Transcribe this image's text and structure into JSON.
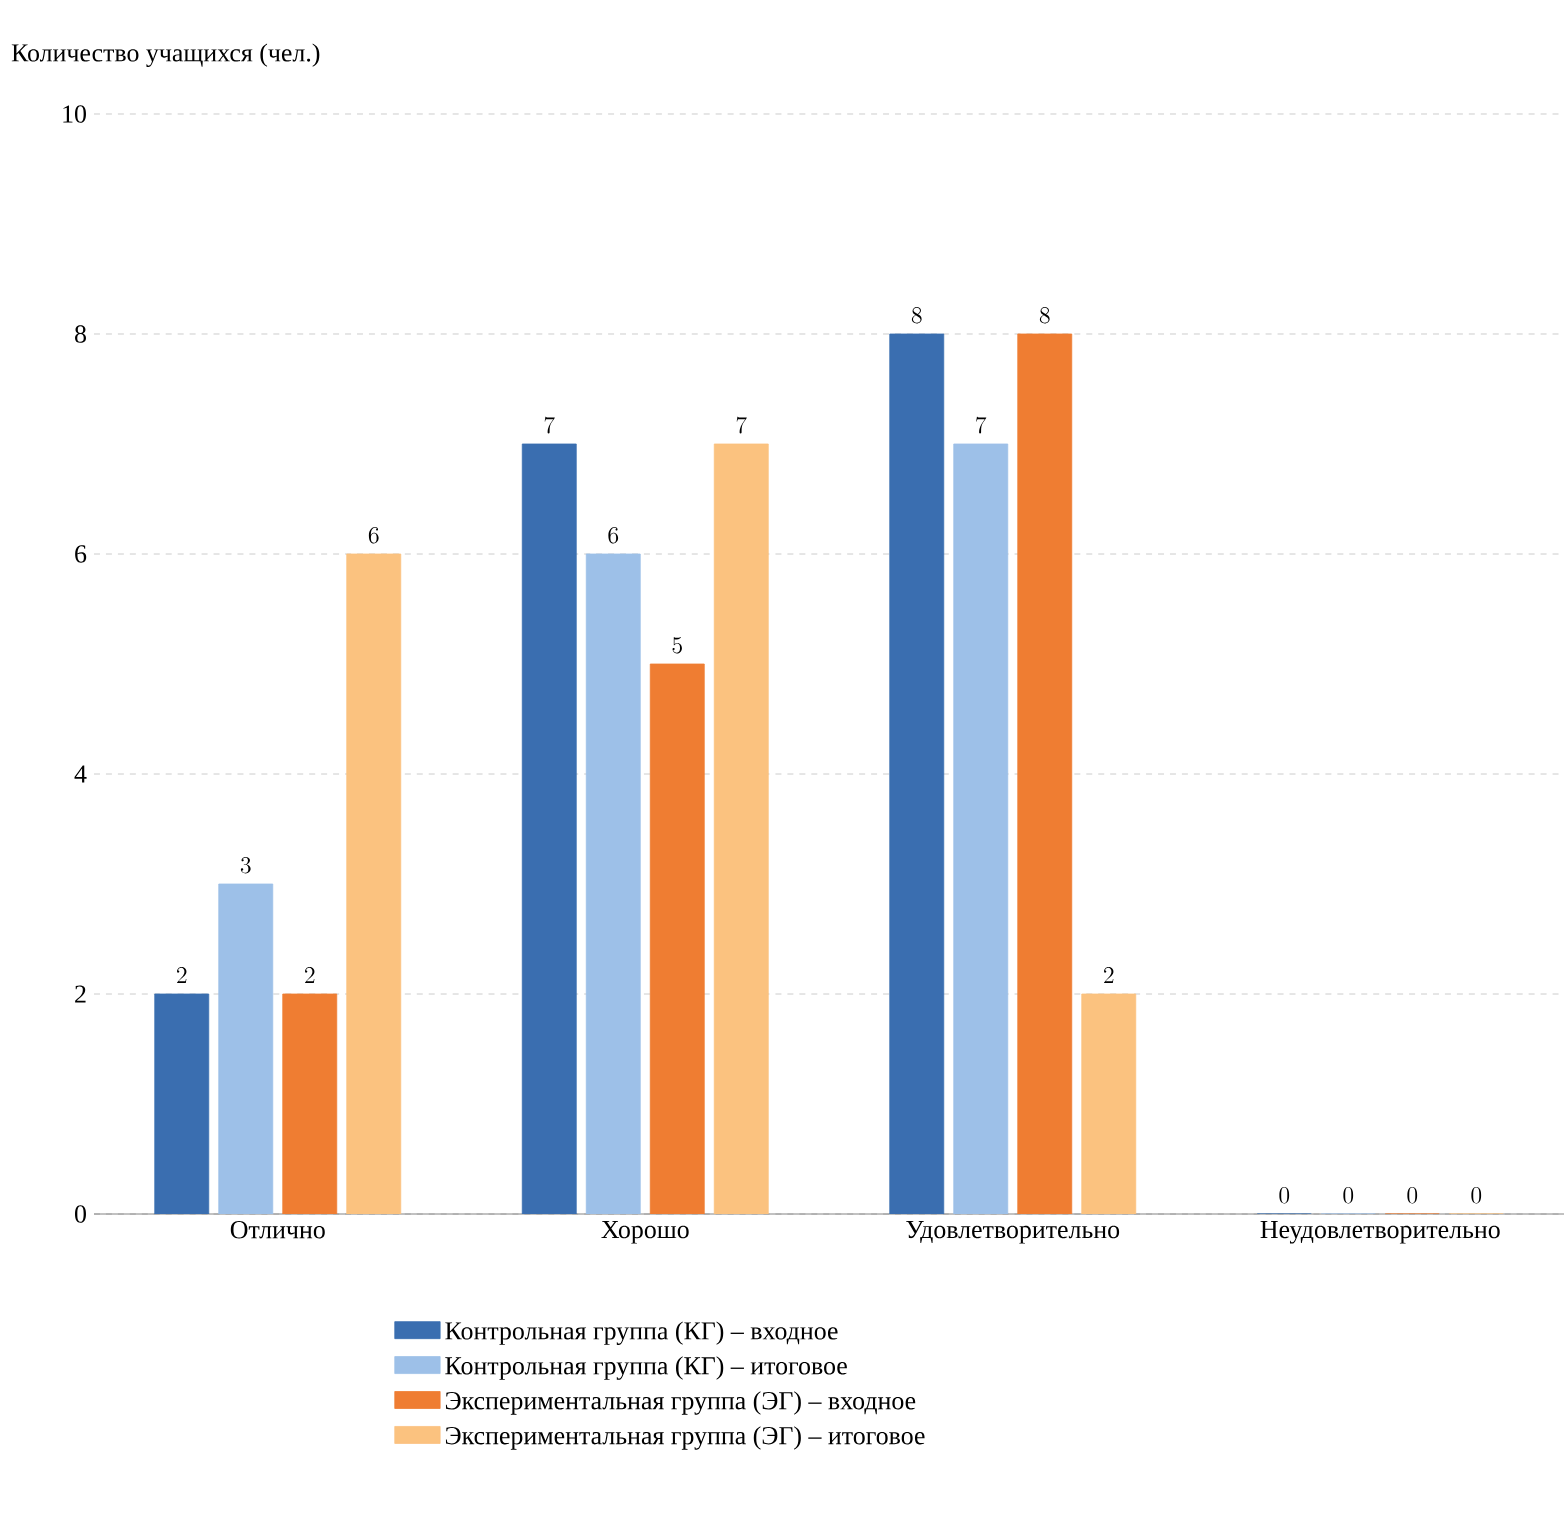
{
  "chart_data": {
    "type": "bar",
    "ylabel": "Количество учащихся (чел.)",
    "categories": [
      "Отлично",
      "Хорошо",
      "Удовлетворительно",
      "Неудовлетворительно"
    ],
    "series": [
      {
        "name": "Контрольная группа (КГ) – входное",
        "color": "#3a6eb0",
        "values": [
          2,
          7,
          8,
          0
        ]
      },
      {
        "name": "Контрольная группа (КГ) – итоговое",
        "color": "#9dc0e8",
        "values": [
          3,
          6,
          7,
          0
        ]
      },
      {
        "name": "Экспериментальная группа (ЭГ) – входное",
        "color": "#ef7d32",
        "values": [
          2,
          5,
          8,
          0
        ]
      },
      {
        "name": "Экспериментальная группа (ЭГ) – итоговое",
        "color": "#fbc27f",
        "values": [
          6,
          7,
          2,
          0
        ]
      }
    ],
    "ylim": [
      0,
      10
    ],
    "yticks": [
      0,
      2,
      4,
      6,
      8,
      10
    ],
    "grid": "y",
    "data_labels": true,
    "legend": "bottom"
  }
}
